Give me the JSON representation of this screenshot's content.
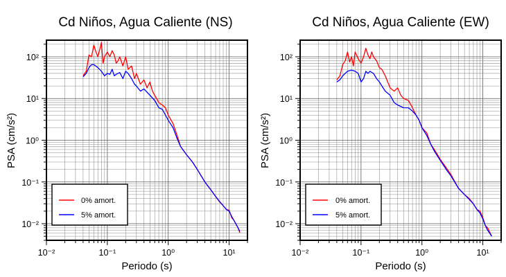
{
  "chart_data": [
    {
      "type": "line",
      "title": "Cd Niños, Agua Caliente (NS)",
      "xlabel": "Periodo (s)",
      "ylabel": "PSA (cm/s²)",
      "x_scale": "log",
      "y_scale": "log",
      "xlim": [
        0.01,
        20
      ],
      "ylim": [
        0.004,
        250
      ],
      "grid": true,
      "legend_position": "bottom-left",
      "x_tick_labels": [
        "10⁻²",
        "10⁻¹",
        "10⁰",
        "10¹"
      ],
      "y_tick_labels": [
        "10⁻²",
        "10⁻¹",
        "10⁰",
        "10¹",
        "10²"
      ],
      "series": [
        {
          "name": "0% amort.",
          "color": "#ff0000",
          "points": [
            [
              0.04,
              35
            ],
            [
              0.045,
              45
            ],
            [
              0.05,
              110
            ],
            [
              0.055,
              100
            ],
            [
              0.06,
              190
            ],
            [
              0.065,
              130
            ],
            [
              0.07,
              100
            ],
            [
              0.075,
              150
            ],
            [
              0.08,
              220
            ],
            [
              0.085,
              70
            ],
            [
              0.09,
              100
            ],
            [
              0.1,
              130
            ],
            [
              0.11,
              100
            ],
            [
              0.12,
              140
            ],
            [
              0.13,
              110
            ],
            [
              0.14,
              70
            ],
            [
              0.15,
              80
            ],
            [
              0.16,
              100
            ],
            [
              0.18,
              60
            ],
            [
              0.2,
              100
            ],
            [
              0.22,
              50
            ],
            [
              0.25,
              60
            ],
            [
              0.28,
              30
            ],
            [
              0.3,
              40
            ],
            [
              0.35,
              22
            ],
            [
              0.4,
              28
            ],
            [
              0.45,
              18
            ],
            [
              0.5,
              25
            ],
            [
              0.55,
              15
            ],
            [
              0.6,
              12
            ],
            [
              0.7,
              8
            ],
            [
              0.8,
              7
            ],
            [
              0.9,
              6
            ],
            [
              1.0,
              4
            ],
            [
              1.2,
              2.5
            ],
            [
              1.4,
              1.3
            ],
            [
              1.6,
              0.7
            ],
            [
              2.0,
              0.45
            ],
            [
              2.5,
              0.3
            ],
            [
              3.0,
              0.2
            ],
            [
              4.0,
              0.1
            ],
            [
              5.0,
              0.065
            ],
            [
              6.0,
              0.045
            ],
            [
              7.0,
              0.033
            ],
            [
              8.0,
              0.027
            ],
            [
              9.0,
              0.022
            ],
            [
              10.0,
              0.021
            ],
            [
              11.0,
              0.014
            ],
            [
              12.0,
              0.012
            ],
            [
              14.0,
              0.008
            ],
            [
              15.0,
              0.006
            ]
          ]
        },
        {
          "name": "5% amort.",
          "color": "#0000ff",
          "points": [
            [
              0.04,
              33
            ],
            [
              0.045,
              40
            ],
            [
              0.05,
              55
            ],
            [
              0.055,
              65
            ],
            [
              0.06,
              65
            ],
            [
              0.07,
              55
            ],
            [
              0.08,
              45
            ],
            [
              0.09,
              35
            ],
            [
              0.1,
              40
            ],
            [
              0.11,
              38
            ],
            [
              0.12,
              50
            ],
            [
              0.13,
              35
            ],
            [
              0.14,
              38
            ],
            [
              0.16,
              42
            ],
            [
              0.18,
              30
            ],
            [
              0.2,
              45
            ],
            [
              0.22,
              40
            ],
            [
              0.25,
              30
            ],
            [
              0.28,
              22
            ],
            [
              0.3,
              20
            ],
            [
              0.35,
              15
            ],
            [
              0.4,
              17
            ],
            [
              0.5,
              12
            ],
            [
              0.6,
              9
            ],
            [
              0.7,
              6
            ],
            [
              0.8,
              5.5
            ],
            [
              0.9,
              4
            ],
            [
              1.0,
              3
            ],
            [
              1.2,
              2
            ],
            [
              1.4,
              1.1
            ],
            [
              1.6,
              0.7
            ],
            [
              2.0,
              0.45
            ],
            [
              2.5,
              0.3
            ],
            [
              3.0,
              0.2
            ],
            [
              4.0,
              0.1
            ],
            [
              5.0,
              0.065
            ],
            [
              6.0,
              0.045
            ],
            [
              7.0,
              0.034
            ],
            [
              8.0,
              0.027
            ],
            [
              9.0,
              0.022
            ],
            [
              10.0,
              0.02
            ],
            [
              11.0,
              0.015
            ],
            [
              12.0,
              0.012
            ],
            [
              14.0,
              0.008
            ],
            [
              15.0,
              0.0065
            ]
          ]
        }
      ]
    },
    {
      "type": "line",
      "title": "Cd Niños, Agua Caliente (EW)",
      "xlabel": "Periodo (s)",
      "ylabel": "PSA (cm/s²)",
      "x_scale": "log",
      "y_scale": "log",
      "xlim": [
        0.01,
        20
      ],
      "ylim": [
        0.004,
        250
      ],
      "grid": true,
      "legend_position": "bottom-left",
      "x_tick_labels": [
        "10⁻²",
        "10⁻¹",
        "10⁰",
        "10¹"
      ],
      "y_tick_labels": [
        "10⁻²",
        "10⁻¹",
        "10⁰",
        "10¹",
        "10²"
      ],
      "series": [
        {
          "name": "0% amort.",
          "color": "#ff0000",
          "points": [
            [
              0.04,
              28
            ],
            [
              0.045,
              35
            ],
            [
              0.05,
              65
            ],
            [
              0.055,
              80
            ],
            [
              0.06,
              130
            ],
            [
              0.065,
              75
            ],
            [
              0.07,
              100
            ],
            [
              0.075,
              60
            ],
            [
              0.08,
              130
            ],
            [
              0.09,
              90
            ],
            [
              0.1,
              70
            ],
            [
              0.11,
              100
            ],
            [
              0.12,
              160
            ],
            [
              0.13,
              110
            ],
            [
              0.14,
              90
            ],
            [
              0.15,
              130
            ],
            [
              0.16,
              100
            ],
            [
              0.18,
              80
            ],
            [
              0.2,
              55
            ],
            [
              0.22,
              50
            ],
            [
              0.25,
              35
            ],
            [
              0.3,
              18
            ],
            [
              0.35,
              15
            ],
            [
              0.4,
              18
            ],
            [
              0.45,
              12
            ],
            [
              0.5,
              10
            ],
            [
              0.6,
              9
            ],
            [
              0.7,
              6
            ],
            [
              0.8,
              4
            ],
            [
              0.9,
              3
            ],
            [
              1.0,
              2
            ],
            [
              1.2,
              1.5
            ],
            [
              1.4,
              0.8
            ],
            [
              1.6,
              0.6
            ],
            [
              2.0,
              0.35
            ],
            [
              2.5,
              0.22
            ],
            [
              3.0,
              0.15
            ],
            [
              4.0,
              0.07
            ],
            [
              5.0,
              0.05
            ],
            [
              6.0,
              0.04
            ],
            [
              7.0,
              0.03
            ],
            [
              8.0,
              0.022
            ],
            [
              9.0,
              0.02
            ],
            [
              10.0,
              0.014
            ],
            [
              11.0,
              0.009
            ],
            [
              12.0,
              0.008
            ],
            [
              14.0,
              0.005
            ]
          ]
        },
        {
          "name": "5% amort.",
          "color": "#0000ff",
          "points": [
            [
              0.04,
              25
            ],
            [
              0.045,
              28
            ],
            [
              0.05,
              35
            ],
            [
              0.055,
              40
            ],
            [
              0.06,
              45
            ],
            [
              0.07,
              48
            ],
            [
              0.08,
              45
            ],
            [
              0.09,
              40
            ],
            [
              0.1,
              25
            ],
            [
              0.11,
              30
            ],
            [
              0.12,
              45
            ],
            [
              0.13,
              40
            ],
            [
              0.14,
              45
            ],
            [
              0.16,
              40
            ],
            [
              0.18,
              30
            ],
            [
              0.2,
              25
            ],
            [
              0.22,
              20
            ],
            [
              0.25,
              15
            ],
            [
              0.3,
              12
            ],
            [
              0.35,
              8
            ],
            [
              0.4,
              7
            ],
            [
              0.5,
              6
            ],
            [
              0.6,
              6
            ],
            [
              0.7,
              5
            ],
            [
              0.8,
              4
            ],
            [
              0.9,
              3
            ],
            [
              1.0,
              2
            ],
            [
              1.2,
              1.3
            ],
            [
              1.4,
              0.8
            ],
            [
              1.6,
              0.55
            ],
            [
              2.0,
              0.33
            ],
            [
              2.5,
              0.2
            ],
            [
              3.0,
              0.14
            ],
            [
              4.0,
              0.07
            ],
            [
              5.0,
              0.05
            ],
            [
              6.0,
              0.038
            ],
            [
              7.0,
              0.03
            ],
            [
              8.0,
              0.022
            ],
            [
              9.0,
              0.018
            ],
            [
              10.0,
              0.013
            ],
            [
              11.0,
              0.009
            ],
            [
              12.0,
              0.007
            ],
            [
              14.0,
              0.005
            ]
          ]
        }
      ]
    }
  ]
}
